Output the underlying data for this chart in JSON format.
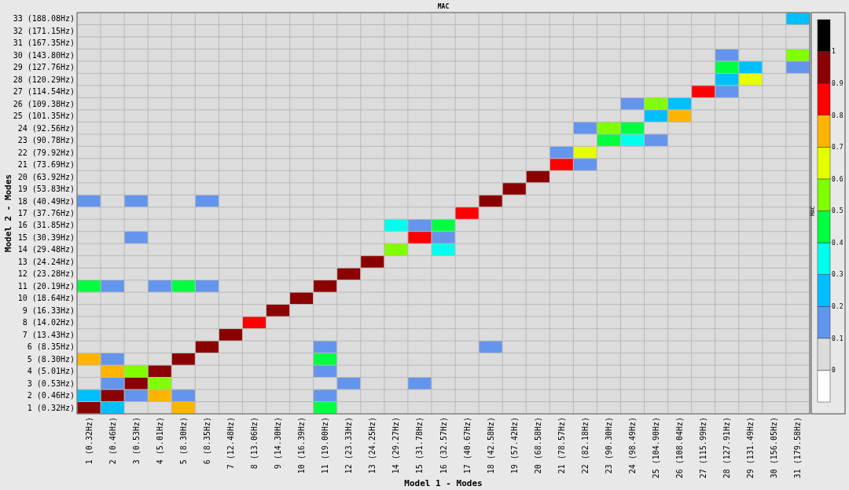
{
  "chart_data": {
    "type": "heatmap",
    "title": "MAC",
    "xlabel": "Model 1 - Modes",
    "ylabel": "Model 2 - Modes",
    "clabel": "MAC",
    "categories": [
      "1 (0.32Hz)",
      "2 (0.46Hz)",
      "3 (0.53Hz)",
      "4 (5.01Hz)",
      "5 (8.30Hz)",
      "6 (8.35Hz)",
      "7 (12.48Hz)",
      "8 (13.06Hz)",
      "9 (14.30Hz)",
      "10 (16.39Hz)",
      "11 (19.00Hz)",
      "12 (23.33Hz)",
      "13 (24.25Hz)",
      "14 (29.27Hz)",
      "15 (31.78Hz)",
      "16 (32.57Hz)",
      "17 (40.67Hz)",
      "18 (42.58Hz)",
      "19 (57.42Hz)",
      "20 (68.58Hz)",
      "21 (78.57Hz)",
      "22 (82.18Hz)",
      "23 (90.30Hz)",
      "24 (98.49Hz)",
      "25 (104.90Hz)",
      "26 (108.04Hz)",
      "27 (115.99Hz)",
      "28 (127.91Hz)",
      "29 (131.49Hz)",
      "30 (156.05Hz)",
      "31 (179.58Hz)"
    ],
    "y_categories": [
      "33 (188.08Hz)",
      "32 (171.15Hz)",
      "31 (167.35Hz)",
      "30 (143.80Hz)",
      "29 (127.76Hz)",
      "28 (120.29Hz)",
      "27 (114.54Hz)",
      "26 (109.38Hz)",
      "25 (101.35Hz)",
      "24 (92.56Hz)",
      "23 (90.78Hz)",
      "22 (79.92Hz)",
      "21 (73.69Hz)",
      "20 (63.92Hz)",
      "19 (53.83Hz)",
      "18 (40.49Hz)",
      "17 (37.76Hz)",
      "16 (31.85Hz)",
      "15 (30.39Hz)",
      "14 (29.48Hz)",
      "13 (24.24Hz)",
      "12 (23.28Hz)",
      "11 (20.19Hz)",
      "10 (18.64Hz)",
      "9 (16.33Hz)",
      "8 (14.02Hz)",
      "7 (13.43Hz)",
      "6 (8.35Hz)",
      "5 (8.30Hz)",
      "4 (5.01Hz)",
      "3 (0.53Hz)",
      "2 (0.46Hz)",
      "1 (0.32Hz)"
    ],
    "cells": [
      [
        0,
        0,
        0,
        0,
        0,
        0,
        0,
        0,
        0,
        0,
        0,
        0,
        0,
        0,
        0,
        0,
        0,
        0,
        0,
        0,
        0,
        0,
        0,
        0,
        0,
        0,
        0,
        0,
        0,
        0,
        0.25
      ],
      [
        0,
        0,
        0,
        0,
        0,
        0,
        0,
        0,
        0,
        0,
        0,
        0,
        0,
        0,
        0,
        0,
        0,
        0,
        0,
        0,
        0,
        0,
        0,
        0,
        0,
        0,
        0,
        0,
        0,
        0,
        0
      ],
      [
        0,
        0,
        0,
        0,
        0,
        0,
        0,
        0,
        0,
        0,
        0,
        0,
        0,
        0,
        0,
        0,
        0,
        0,
        0,
        0,
        0,
        0,
        0,
        0,
        0,
        0,
        0,
        0,
        0,
        0,
        0
      ],
      [
        0,
        0,
        0,
        0,
        0,
        0,
        0,
        0,
        0,
        0,
        0,
        0,
        0,
        0,
        0,
        0,
        0,
        0,
        0,
        0,
        0,
        0,
        0,
        0,
        0,
        0,
        0,
        0.15,
        0,
        0,
        0.55
      ],
      [
        0,
        0,
        0,
        0,
        0,
        0,
        0,
        0,
        0,
        0,
        0,
        0,
        0,
        0,
        0,
        0,
        0,
        0,
        0,
        0,
        0,
        0,
        0,
        0,
        0,
        0,
        0,
        0.45,
        0.25,
        0,
        0.15
      ],
      [
        0,
        0,
        0,
        0,
        0,
        0,
        0,
        0,
        0,
        0,
        0,
        0,
        0,
        0,
        0,
        0,
        0,
        0,
        0,
        0,
        0,
        0,
        0,
        0,
        0,
        0,
        0,
        0.25,
        0.65,
        0,
        0
      ],
      [
        0,
        0,
        0,
        0,
        0,
        0,
        0,
        0,
        0,
        0,
        0,
        0,
        0,
        0,
        0,
        0,
        0,
        0,
        0,
        0,
        0,
        0,
        0,
        0,
        0,
        0,
        0.85,
        0.15,
        0,
        0,
        0
      ],
      [
        0,
        0,
        0,
        0,
        0,
        0,
        0,
        0,
        0,
        0,
        0,
        0,
        0,
        0,
        0,
        0,
        0,
        0,
        0,
        0,
        0,
        0,
        0,
        0.15,
        0.55,
        0.25,
        0,
        0,
        0,
        0,
        0
      ],
      [
        0,
        0,
        0,
        0,
        0,
        0,
        0,
        0,
        0,
        0,
        0,
        0,
        0,
        0,
        0,
        0,
        0,
        0,
        0,
        0,
        0,
        0,
        0,
        0,
        0.25,
        0.75,
        0,
        0,
        0,
        0,
        0
      ],
      [
        0,
        0,
        0,
        0,
        0,
        0,
        0,
        0,
        0,
        0,
        0,
        0,
        0,
        0,
        0,
        0,
        0,
        0,
        0,
        0,
        0,
        0.15,
        0.55,
        0.45,
        0,
        0,
        0,
        0,
        0,
        0,
        0
      ],
      [
        0,
        0,
        0,
        0,
        0,
        0,
        0,
        0,
        0,
        0,
        0,
        0,
        0,
        0,
        0,
        0,
        0,
        0,
        0,
        0,
        0,
        0,
        0.45,
        0.35,
        0.15,
        0,
        0,
        0,
        0,
        0,
        0
      ],
      [
        0,
        0,
        0,
        0,
        0,
        0,
        0,
        0,
        0,
        0,
        0,
        0,
        0,
        0,
        0,
        0,
        0,
        0,
        0,
        0,
        0.15,
        0.65,
        0,
        0,
        0,
        0,
        0,
        0,
        0,
        0,
        0
      ],
      [
        0,
        0,
        0,
        0,
        0,
        0,
        0,
        0,
        0,
        0,
        0,
        0,
        0,
        0,
        0,
        0,
        0,
        0,
        0,
        0,
        0.85,
        0.15,
        0,
        0,
        0,
        0,
        0,
        0,
        0,
        0,
        0
      ],
      [
        0,
        0,
        0,
        0,
        0,
        0,
        0,
        0,
        0,
        0,
        0,
        0,
        0,
        0,
        0,
        0,
        0,
        0,
        0,
        0.95,
        0,
        0,
        0,
        0,
        0,
        0,
        0,
        0,
        0,
        0,
        0
      ],
      [
        0,
        0,
        0,
        0,
        0,
        0,
        0,
        0,
        0,
        0,
        0,
        0,
        0,
        0,
        0,
        0,
        0,
        0,
        0.95,
        0,
        0,
        0,
        0,
        0,
        0,
        0,
        0,
        0,
        0,
        0,
        0
      ],
      [
        0.15,
        0,
        0.15,
        0,
        0,
        0.15,
        0,
        0,
        0,
        0,
        0,
        0,
        0,
        0,
        0,
        0,
        0,
        0.95,
        0,
        0,
        0,
        0,
        0,
        0,
        0,
        0,
        0,
        0,
        0,
        0,
        0
      ],
      [
        0,
        0,
        0,
        0,
        0,
        0,
        0,
        0,
        0,
        0,
        0,
        0,
        0,
        0,
        0,
        0,
        0.85,
        0,
        0,
        0,
        0,
        0,
        0,
        0,
        0,
        0,
        0,
        0,
        0,
        0,
        0
      ],
      [
        0,
        0,
        0,
        0,
        0,
        0,
        0,
        0,
        0,
        0,
        0,
        0,
        0,
        0.35,
        0.15,
        0.45,
        0,
        0,
        0,
        0,
        0,
        0,
        0,
        0,
        0,
        0,
        0,
        0,
        0,
        0,
        0
      ],
      [
        0,
        0,
        0.15,
        0,
        0,
        0,
        0,
        0,
        0,
        0,
        0,
        0,
        0,
        0,
        0.85,
        0.15,
        0,
        0,
        0,
        0,
        0,
        0,
        0,
        0,
        0,
        0,
        0,
        0,
        0,
        0,
        0
      ],
      [
        0,
        0,
        0,
        0,
        0,
        0,
        0,
        0,
        0,
        0,
        0,
        0,
        0,
        0.55,
        0,
        0.35,
        0,
        0,
        0,
        0,
        0,
        0,
        0,
        0,
        0,
        0,
        0,
        0,
        0,
        0,
        0
      ],
      [
        0,
        0,
        0,
        0,
        0,
        0,
        0,
        0,
        0,
        0,
        0,
        0,
        0.95,
        0,
        0,
        0,
        0,
        0,
        0,
        0,
        0,
        0,
        0,
        0,
        0,
        0,
        0,
        0,
        0,
        0,
        0
      ],
      [
        0,
        0,
        0,
        0,
        0,
        0,
        0,
        0,
        0,
        0,
        0,
        0.95,
        0,
        0,
        0,
        0,
        0,
        0,
        0,
        0,
        0,
        0,
        0,
        0,
        0,
        0,
        0,
        0,
        0,
        0,
        0
      ],
      [
        0.45,
        0.15,
        0,
        0.15,
        0.45,
        0.15,
        0,
        0,
        0,
        0,
        0.95,
        0,
        0,
        0,
        0,
        0,
        0,
        0,
        0,
        0,
        0,
        0,
        0,
        0,
        0,
        0,
        0,
        0,
        0,
        0,
        0
      ],
      [
        0,
        0,
        0,
        0,
        0,
        0,
        0,
        0,
        0,
        0.95,
        0,
        0,
        0,
        0,
        0,
        0,
        0,
        0,
        0,
        0,
        0,
        0,
        0,
        0,
        0,
        0,
        0,
        0,
        0,
        0,
        0
      ],
      [
        0,
        0,
        0,
        0,
        0,
        0,
        0,
        0,
        0.95,
        0,
        0,
        0,
        0,
        0,
        0,
        0,
        0,
        0,
        0,
        0,
        0,
        0,
        0,
        0,
        0,
        0,
        0,
        0,
        0,
        0,
        0
      ],
      [
        0,
        0,
        0,
        0,
        0,
        0,
        0,
        0.85,
        0,
        0,
        0,
        0,
        0,
        0,
        0,
        0,
        0,
        0,
        0,
        0,
        0,
        0,
        0,
        0,
        0,
        0,
        0,
        0,
        0,
        0,
        0
      ],
      [
        0,
        0,
        0,
        0,
        0,
        0,
        0.95,
        0,
        0,
        0,
        0,
        0,
        0,
        0,
        0,
        0,
        0,
        0,
        0,
        0,
        0,
        0,
        0,
        0,
        0,
        0,
        0,
        0,
        0,
        0,
        0
      ],
      [
        0,
        0,
        0,
        0,
        0,
        0.95,
        0,
        0,
        0,
        0,
        0.15,
        0,
        0,
        0,
        0,
        0,
        0,
        0.15,
        0,
        0,
        0,
        0,
        0,
        0,
        0,
        0,
        0,
        0,
        0,
        0,
        0
      ],
      [
        0.75,
        0.15,
        0,
        0,
        0.95,
        0,
        0,
        0,
        0,
        0,
        0.45,
        0,
        0,
        0,
        0,
        0,
        0,
        0,
        0,
        0,
        0,
        0,
        0,
        0,
        0,
        0,
        0,
        0,
        0,
        0,
        0
      ],
      [
        0,
        0.75,
        0.55,
        0.95,
        0,
        0,
        0,
        0,
        0,
        0,
        0.15,
        0,
        0,
        0,
        0,
        0,
        0,
        0,
        0,
        0,
        0,
        0,
        0,
        0,
        0,
        0,
        0,
        0,
        0,
        0,
        0
      ],
      [
        0,
        0.15,
        0.95,
        0.55,
        0,
        0,
        0,
        0,
        0,
        0,
        0,
        0.15,
        0,
        0,
        0.15,
        0,
        0,
        0,
        0,
        0,
        0,
        0,
        0,
        0,
        0,
        0,
        0,
        0,
        0,
        0,
        0
      ],
      [
        0.25,
        0.95,
        0.15,
        0.75,
        0.15,
        0,
        0,
        0,
        0,
        0,
        0.15,
        0,
        0,
        0,
        0,
        0,
        0,
        0,
        0,
        0,
        0,
        0,
        0,
        0,
        0,
        0,
        0,
        0,
        0,
        0,
        0
      ],
      [
        0.95,
        0.25,
        0,
        0,
        0.75,
        0,
        0,
        0,
        0,
        0,
        0.45,
        0,
        0,
        0,
        0,
        0,
        0,
        0,
        0,
        0,
        0,
        0,
        0,
        0,
        0,
        0,
        0,
        0,
        0,
        0,
        0
      ]
    ],
    "clim": [
      -0.1,
      1.1
    ],
    "cticks": [
      0,
      0.1,
      0.2,
      0.3,
      0.4,
      0.5,
      0.6,
      0.7,
      0.8,
      0.9,
      1
    ],
    "grid": true
  }
}
